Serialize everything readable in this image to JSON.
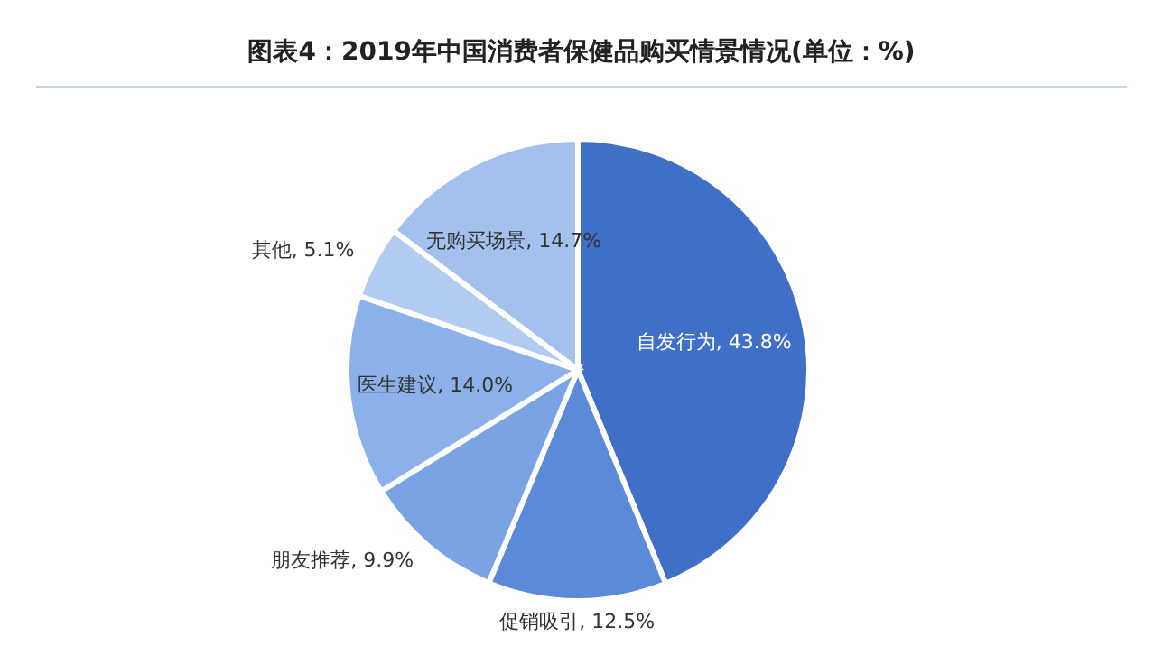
{
  "chart_data": {
    "type": "pie",
    "title": "图表4：2019年中国消费者保健品购买情景情况(单位：%)",
    "categories": [
      "自发行为",
      "促销吸引",
      "朋友推荐",
      "医生建议",
      "其他",
      "无购买场景"
    ],
    "values": [
      43.8,
      12.5,
      9.9,
      14.0,
      5.1,
      14.7
    ],
    "value_labels": [
      "43.8%",
      "12.5%",
      "9.9%",
      "14.0%",
      "5.1%",
      "14.7%"
    ],
    "colors": [
      "#3f6fc6",
      "#5a8ad8",
      "#7aa3e4",
      "#8cb1ea",
      "#b2cbf1",
      "#a4c1ee"
    ]
  }
}
